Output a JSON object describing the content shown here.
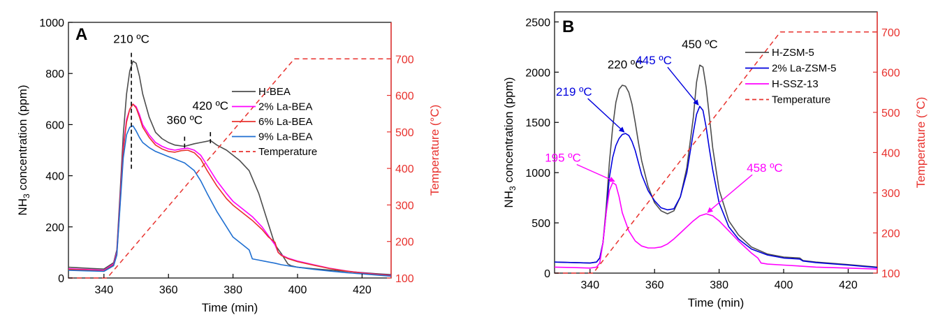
{
  "chart_data": [
    {
      "type": "line",
      "panel_label": "A",
      "xlabel": "Time (min)",
      "ylabel_left": "NH3 concentration (ppm)",
      "ylabel_right": "Temperature (°C)",
      "xlim": [
        329,
        429
      ],
      "ylim_left": [
        0,
        1000
      ],
      "ylim_right": [
        100,
        800
      ],
      "x_ticks": [
        340,
        360,
        380,
        400,
        420
      ],
      "y_ticks_left": [
        0,
        200,
        400,
        600,
        800,
        1000
      ],
      "y_ticks_right": [
        100,
        200,
        300,
        400,
        500,
        600,
        700
      ],
      "legend_position": "right",
      "series": [
        {
          "name": "H-BEA",
          "color": "#4d4d4d",
          "axis": "left",
          "x": [
            329,
            335,
            340,
            343,
            344,
            345,
            346,
            347,
            348,
            349,
            350,
            351,
            352,
            354,
            356,
            358,
            360,
            362,
            365,
            368,
            370,
            372,
            373,
            375,
            378,
            380,
            382,
            385,
            388,
            390,
            393,
            395,
            396,
            397,
            398,
            400,
            405,
            410,
            415,
            420,
            425,
            429
          ],
          "y": [
            42,
            38,
            35,
            60,
            110,
            330,
            560,
            720,
            810,
            848,
            840,
            790,
            720,
            630,
            570,
            545,
            530,
            520,
            515,
            525,
            530,
            535,
            538,
            520,
            500,
            480,
            460,
            420,
            330,
            250,
            130,
            95,
            75,
            55,
            48,
            42,
            36,
            31,
            26,
            21,
            16,
            13
          ]
        },
        {
          "name": "2% La-BEA",
          "color": "#ff00ff",
          "axis": "left",
          "x": [
            329,
            335,
            340,
            343,
            344,
            345,
            346,
            347,
            348,
            349,
            350,
            351,
            352,
            354,
            356,
            358,
            360,
            362,
            364,
            366,
            368,
            370,
            372,
            375,
            378,
            380,
            383,
            386,
            389,
            391,
            393,
            394,
            395,
            397,
            400,
            405,
            410,
            415,
            420,
            425,
            429
          ],
          "y": [
            36,
            33,
            30,
            55,
            100,
            300,
            510,
            620,
            660,
            680,
            670,
            640,
            600,
            560,
            530,
            515,
            505,
            500,
            505,
            508,
            500,
            480,
            440,
            380,
            330,
            300,
            270,
            240,
            200,
            165,
            130,
            100,
            90,
            78,
            66,
            52,
            38,
            28,
            20,
            14,
            10
          ]
        },
        {
          "name": "6% La-BEA",
          "color": "#e8322e",
          "axis": "left",
          "x": [
            329,
            335,
            340,
            343,
            344,
            345,
            346,
            347,
            348,
            349,
            350,
            351,
            352,
            354,
            356,
            358,
            360,
            362,
            364,
            366,
            368,
            370,
            372,
            375,
            378,
            380,
            383,
            386,
            389,
            391,
            393,
            394,
            395,
            397,
            400,
            405,
            410,
            415,
            420,
            425,
            429
          ],
          "y": [
            34,
            31,
            28,
            52,
            95,
            290,
            500,
            610,
            660,
            680,
            665,
            630,
            590,
            550,
            520,
            505,
            495,
            492,
            498,
            500,
            490,
            465,
            420,
            360,
            310,
            285,
            255,
            225,
            190,
            160,
            140,
            100,
            88,
            76,
            64,
            50,
            37,
            27,
            19,
            13,
            9
          ]
        },
        {
          "name": "9% La-BEA",
          "color": "#1f6fd1",
          "axis": "left",
          "x": [
            329,
            335,
            340,
            343,
            344,
            345,
            346,
            347,
            348,
            349,
            350,
            351,
            352,
            354,
            356,
            358,
            360,
            362,
            365,
            368,
            370,
            372,
            375,
            378,
            380,
            383,
            385,
            386,
            388,
            390,
            393,
            395,
            398,
            400,
            405,
            410,
            415,
            420,
            425,
            429
          ],
          "y": [
            30,
            28,
            26,
            48,
            90,
            280,
            470,
            560,
            590,
            595,
            575,
            550,
            530,
            510,
            495,
            485,
            475,
            465,
            450,
            420,
            380,
            330,
            260,
            200,
            160,
            130,
            110,
            75,
            70,
            65,
            58,
            52,
            46,
            42,
            34,
            27,
            21,
            16,
            11,
            7
          ]
        },
        {
          "name": "Temperature",
          "color": "#e8322e",
          "axis": "right",
          "dash": true,
          "x": [
            329,
            341,
            399,
            429
          ],
          "y": [
            100,
            100,
            700,
            700
          ]
        }
      ],
      "annotations": [
        {
          "text": "210 ºC",
          "x": 348.5,
          "y": 848,
          "color": "#000000"
        },
        {
          "text": "360 ºC",
          "x": 365,
          "y": 520,
          "color": "#000000"
        },
        {
          "text": "420 ºC",
          "x": 373,
          "y": 538,
          "color": "#000000"
        }
      ]
    },
    {
      "type": "line",
      "panel_label": "B",
      "xlabel": "Time (min)",
      "ylabel_left": "NH3 concentration (ppm)",
      "ylabel_right": "Temperature (°C)",
      "xlim": [
        329,
        429
      ],
      "ylim_left": [
        0,
        2600
      ],
      "ylim_right": [
        100,
        750
      ],
      "x_ticks": [
        340,
        360,
        380,
        400,
        420
      ],
      "y_ticks_left": [
        0,
        500,
        1000,
        1500,
        2000,
        2500
      ],
      "y_ticks_right": [
        100,
        200,
        300,
        400,
        500,
        600,
        700
      ],
      "legend_position": "top-right",
      "series": [
        {
          "name": "H-ZSM-5",
          "color": "#4d4d4d",
          "axis": "left",
          "x": [
            329,
            335,
            340,
            342,
            343,
            344,
            345,
            346,
            347,
            348,
            349,
            350,
            351,
            352,
            353,
            354,
            355,
            356,
            358,
            360,
            362,
            364,
            366,
            368,
            370,
            372,
            373,
            374,
            375,
            376,
            377,
            378,
            380,
            383,
            386,
            390,
            395,
            400,
            405,
            406,
            410,
            420,
            429
          ],
          "y": [
            110,
            105,
            100,
            110,
            150,
            300,
            650,
            1100,
            1450,
            1700,
            1830,
            1870,
            1860,
            1800,
            1680,
            1500,
            1300,
            1120,
            860,
            700,
            620,
            590,
            620,
            760,
            1050,
            1550,
            1900,
            2070,
            2050,
            1850,
            1550,
            1250,
            830,
            520,
            380,
            260,
            190,
            160,
            150,
            125,
            110,
            85,
            60
          ]
        },
        {
          "name": "2% La-ZSM-5",
          "color": "#0000dd",
          "axis": "left",
          "x": [
            329,
            335,
            340,
            342,
            343,
            344,
            345,
            346,
            347,
            348,
            349,
            350,
            351,
            352,
            353,
            354,
            355,
            356,
            358,
            360,
            362,
            364,
            366,
            368,
            370,
            372,
            373,
            374,
            375,
            376,
            377,
            378,
            380,
            383,
            386,
            390,
            395,
            400,
            405,
            406,
            410,
            420,
            429
          ],
          "y": [
            110,
            105,
            100,
            110,
            150,
            300,
            600,
            950,
            1150,
            1270,
            1340,
            1380,
            1390,
            1370,
            1310,
            1220,
            1100,
            980,
            820,
            720,
            650,
            630,
            640,
            760,
            1000,
            1400,
            1580,
            1660,
            1620,
            1450,
            1230,
            1030,
            700,
            460,
            340,
            240,
            180,
            150,
            140,
            120,
            105,
            80,
            55
          ]
        },
        {
          "name": "H-SSZ-13",
          "color": "#ff00ff",
          "axis": "left",
          "x": [
            329,
            335,
            340,
            342,
            343,
            344,
            345,
            346,
            347,
            348,
            349,
            350,
            352,
            354,
            356,
            358,
            360,
            362,
            364,
            366,
            368,
            370,
            372,
            374,
            376,
            378,
            380,
            383,
            386,
            390,
            392,
            393,
            395,
            400,
            405,
            410,
            420,
            429
          ],
          "y": [
            60,
            55,
            50,
            60,
            100,
            300,
            600,
            820,
            900,
            880,
            760,
            600,
            420,
            320,
            270,
            250,
            250,
            260,
            290,
            340,
            400,
            460,
            520,
            570,
            590,
            570,
            520,
            420,
            320,
            200,
            150,
            100,
            90,
            80,
            70,
            60,
            50,
            40
          ]
        },
        {
          "name": "Temperature",
          "color": "#e8322e",
          "axis": "right",
          "dash": true,
          "x": [
            329,
            341,
            399,
            429
          ],
          "y": [
            100,
            100,
            700,
            700
          ]
        }
      ],
      "annotations": [
        {
          "text": "220 ºC",
          "x": 351,
          "y": 1870,
          "color": "#000000"
        },
        {
          "text": "450 ºC",
          "x": 374,
          "y": 2070,
          "color": "#000000"
        },
        {
          "text": "219 ºC",
          "x": 351,
          "y": 1390,
          "color": "#0000dd"
        },
        {
          "text": "445 ºC",
          "x": 374,
          "y": 1660,
          "color": "#0000dd"
        },
        {
          "text": "195 ºC",
          "x": 348,
          "y": 900,
          "color": "#ff00ff"
        },
        {
          "text": "458 ºC",
          "x": 376,
          "y": 590,
          "color": "#ff00ff"
        }
      ]
    }
  ]
}
